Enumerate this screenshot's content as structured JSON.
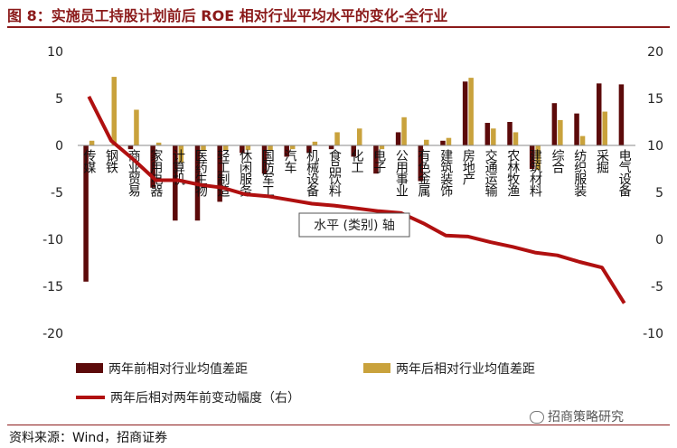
{
  "figure": {
    "title": "图 8：实施员工持股计划前后 ROE 相对行业平均水平的变化-全行业",
    "source": "资料来源：Wind，招商证券",
    "watermark": "招商策略研究"
  },
  "colors": {
    "title": "#8b1a1a",
    "before_bar": "#5c0a0a",
    "after_bar": "#c9a23c",
    "line": "#b01010",
    "axis": "#888888"
  },
  "chart_data": {
    "type": "bar+line",
    "categories": [
      "传媒",
      "钢铁",
      "商业贸易",
      "家用电器",
      "计算机",
      "医药生物",
      "轻工制造",
      "休闲服务",
      "国防军工",
      "汽车",
      "机械设备",
      "食品饮料",
      "化工",
      "电子",
      "公用事业",
      "有色金属",
      "建筑装饰",
      "房地产",
      "交通运输",
      "农林牧渔",
      "建筑材料",
      "综合",
      "纺织服装",
      "采掘",
      "电气设备"
    ],
    "series": [
      {
        "name": "两年前相对行业均值差距",
        "axis": "left",
        "kind": "bar",
        "values": [
          -14.5,
          0,
          -0.4,
          -4.5,
          -8,
          -8,
          -6,
          -0.8,
          -3,
          -1.2,
          -0.8,
          -0.4,
          -1.2,
          -3,
          1.4,
          -3.8,
          0.5,
          6.8,
          2.4,
          2.5,
          -2.5,
          4.5,
          3.4,
          6.6,
          6.5
        ]
      },
      {
        "name": "两年后相对行业均值差距",
        "axis": "left",
        "kind": "bar",
        "values": [
          0.5,
          7.3,
          3.8,
          0.3,
          -1.8,
          -0.6,
          -0.5,
          -0.5,
          -0.5,
          -0.4,
          0.4,
          1.4,
          1.8,
          -0.4,
          3.0,
          0.6,
          0.8,
          7.2,
          1.8,
          1.4,
          -2.6,
          2.7,
          1.0,
          3.6,
          0
        ]
      },
      {
        "name": "两年后相对两年前变动幅度（右）",
        "axis": "right",
        "kind": "line",
        "values": [
          15.2,
          10.5,
          8.5,
          6.3,
          6.3,
          5.8,
          5.5,
          4.8,
          4.6,
          4.2,
          3.8,
          3.6,
          3.3,
          3.0,
          2.8,
          1.7,
          0.4,
          0.3,
          -0.3,
          -0.8,
          -1.4,
          -1.7,
          -2.4,
          -3.0,
          -6.8
        ]
      }
    ],
    "left_axis": {
      "min": -20,
      "max": 10,
      "ticks": [
        "10",
        "5",
        "0",
        "-5",
        "-10",
        "-15",
        "-20"
      ]
    },
    "right_axis": {
      "min": -10,
      "max": 20,
      "ticks": [
        "20",
        "15",
        "10",
        "5",
        "0",
        "-5",
        "-10"
      ]
    },
    "tooltip": "水平 (类别) 轴",
    "legend": [
      "两年前相对行业均值差距",
      "两年后相对行业均值差距",
      "两年后相对两年前变动幅度（右）"
    ]
  }
}
